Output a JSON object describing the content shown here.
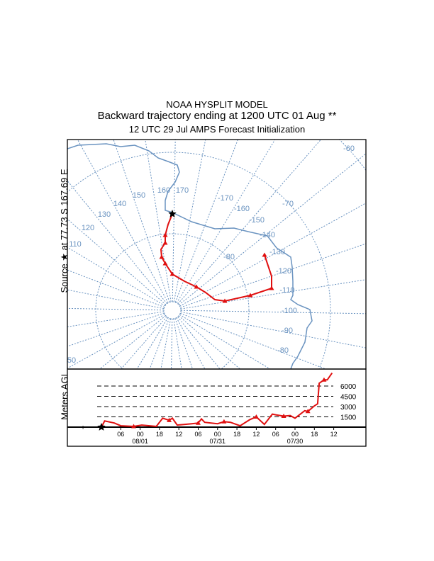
{
  "header": {
    "line1": "NOAA HYSPLIT MODEL",
    "line2": "Backward trajectory ending at 1200 UTC 01 Aug **",
    "line3": "12 UTC 29 Jul    AMPS  Forecast Initialization"
  },
  "map": {
    "source_label": "Source ★ at  77.73 S  167.69 E",
    "longitude_labels": [
      "170",
      "160",
      "150",
      "140",
      "130",
      "120",
      "110",
      "50",
      "-170",
      "-160",
      "-150",
      "-140",
      "-130",
      "-120",
      "-110",
      "-100",
      "-90",
      "-80"
    ],
    "latitude_labels": [
      "-80",
      "-70",
      "-60"
    ],
    "colors": {
      "grid": "#6a93c0",
      "coast": "#6a93c0",
      "trajectory": "#e01010",
      "frame": "#000000"
    }
  },
  "chart_data": {
    "type": "line",
    "ylabel": "Meters AGL",
    "reference_levels": [
      1500,
      3000,
      4500,
      6000
    ],
    "reference_labels": [
      "1500",
      "3000",
      "4500",
      "6000"
    ],
    "tick_labels": [
      "06",
      "00",
      "18",
      "12",
      "06",
      "00",
      "18",
      "12",
      "06",
      "00",
      "18",
      "12"
    ],
    "date_labels": [
      "08/01",
      "07/31",
      "07/30"
    ],
    "series": [
      {
        "hours_back": [
          0,
          1,
          4,
          6,
          10,
          12.5,
          17,
          19,
          21,
          22,
          23.5,
          28,
          30,
          31,
          32,
          36,
          38,
          40,
          43,
          46,
          48,
          50.5,
          53,
          54,
          56.5,
          58.5,
          60,
          63,
          64,
          66,
          67,
          67.5,
          69,
          70,
          71.5
        ],
        "meters_agl": [
          0,
          900,
          600,
          200,
          100,
          300,
          100,
          1300,
          1000,
          1300,
          300,
          500,
          600,
          1200,
          700,
          500,
          800,
          700,
          200,
          1100,
          1500,
          400,
          1900,
          1800,
          1600,
          1700,
          1300,
          2400,
          2300,
          3100,
          3400,
          6400,
          6900,
          6900,
          7900
        ]
      }
    ]
  }
}
